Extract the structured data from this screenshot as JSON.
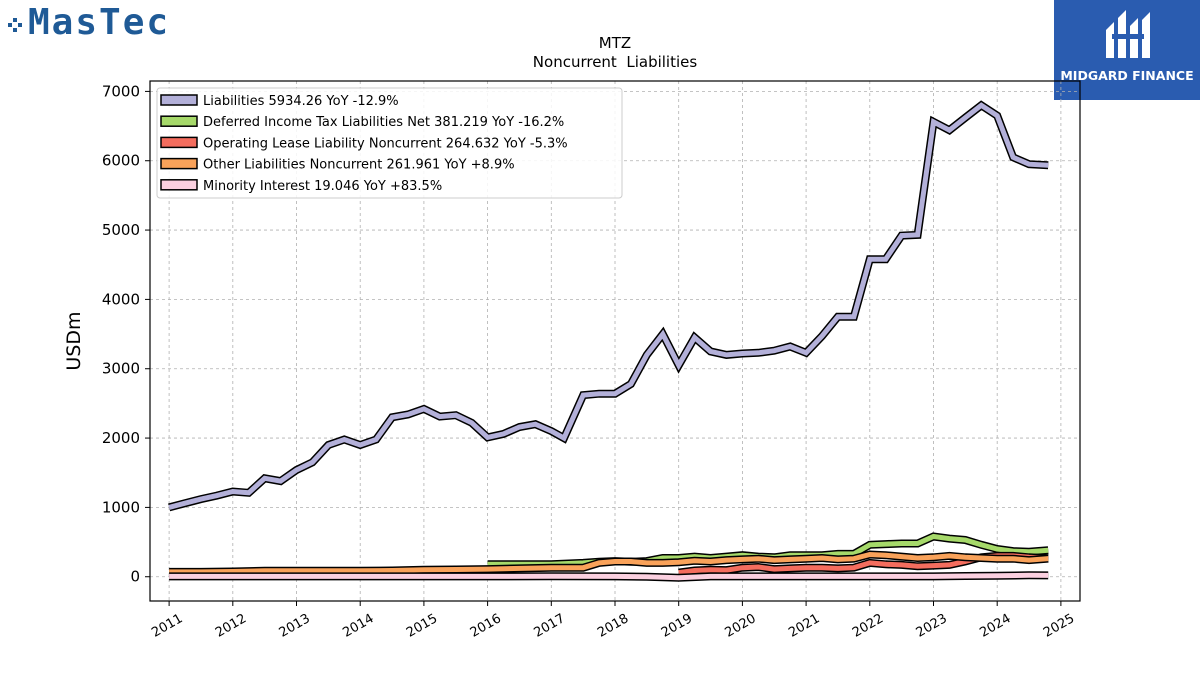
{
  "logos": {
    "left_text": "MasTec",
    "right_text": "MIDGARD FINANCE"
  },
  "chart_data": {
    "type": "line",
    "title": "MTZ",
    "subtitle": "Noncurrent  Liabilities",
    "ylabel": "USDm",
    "xlabel": "",
    "xlim": [
      2010.7,
      2025.3
    ],
    "ylim": [
      -350,
      7150
    ],
    "x_ticks": [
      2011,
      2012,
      2013,
      2014,
      2015,
      2016,
      2017,
      2018,
      2019,
      2020,
      2021,
      2022,
      2023,
      2024,
      2025
    ],
    "y_ticks": [
      0,
      1000,
      2000,
      3000,
      4000,
      5000,
      6000,
      7000
    ],
    "grid": true,
    "legend_position": "top-left",
    "series": [
      {
        "name": "Liabilities",
        "legend": "Liabilities  5934.26 YoY -12.9%",
        "color": "#b3b0d9",
        "points": [
          [
            2011.0,
            1000
          ],
          [
            2011.25,
            1060
          ],
          [
            2011.5,
            1120
          ],
          [
            2011.75,
            1170
          ],
          [
            2012.0,
            1230
          ],
          [
            2012.25,
            1210
          ],
          [
            2012.5,
            1420
          ],
          [
            2012.75,
            1380
          ],
          [
            2013.0,
            1540
          ],
          [
            2013.25,
            1650
          ],
          [
            2013.5,
            1900
          ],
          [
            2013.75,
            1980
          ],
          [
            2014.0,
            1900
          ],
          [
            2014.25,
            1980
          ],
          [
            2014.5,
            2300
          ],
          [
            2014.75,
            2340
          ],
          [
            2015.0,
            2420
          ],
          [
            2015.25,
            2310
          ],
          [
            2015.5,
            2330
          ],
          [
            2015.75,
            2220
          ],
          [
            2016.0,
            2010
          ],
          [
            2016.25,
            2060
          ],
          [
            2016.5,
            2160
          ],
          [
            2016.75,
            2200
          ],
          [
            2017.0,
            2100
          ],
          [
            2017.2,
            2000
          ],
          [
            2017.5,
            2620
          ],
          [
            2017.75,
            2640
          ],
          [
            2018.0,
            2640
          ],
          [
            2018.25,
            2780
          ],
          [
            2018.5,
            3200
          ],
          [
            2018.75,
            3500
          ],
          [
            2019.0,
            3050
          ],
          [
            2019.25,
            3450
          ],
          [
            2019.5,
            3250
          ],
          [
            2019.75,
            3200
          ],
          [
            2020.0,
            3220
          ],
          [
            2020.25,
            3230
          ],
          [
            2020.5,
            3260
          ],
          [
            2020.75,
            3320
          ],
          [
            2021.0,
            3230
          ],
          [
            2021.25,
            3470
          ],
          [
            2021.5,
            3750
          ],
          [
            2021.75,
            3750
          ],
          [
            2022.0,
            4580
          ],
          [
            2022.25,
            4580
          ],
          [
            2022.5,
            4920
          ],
          [
            2022.75,
            4930
          ],
          [
            2023.0,
            6560
          ],
          [
            2023.25,
            6440
          ],
          [
            2023.5,
            6620
          ],
          [
            2023.75,
            6800
          ],
          [
            2024.0,
            6650
          ],
          [
            2024.25,
            6050
          ],
          [
            2024.5,
            5950
          ],
          [
            2024.8,
            5934
          ]
        ]
      },
      {
        "name": "Deferred Income Tax Liabilities Net",
        "legend": "Deferred Income Tax Liabilities Net  381.219 YoY -16.2%",
        "color": "#a6d96a",
        "points": [
          [
            2016.0,
            180
          ],
          [
            2016.5,
            180
          ],
          [
            2017.0,
            180
          ],
          [
            2017.5,
            200
          ],
          [
            2017.75,
            215
          ],
          [
            2018.0,
            225
          ],
          [
            2018.25,
            215
          ],
          [
            2018.5,
            225
          ],
          [
            2018.75,
            270
          ],
          [
            2019.0,
            270
          ],
          [
            2019.25,
            290
          ],
          [
            2019.5,
            270
          ],
          [
            2019.75,
            290
          ],
          [
            2020.0,
            310
          ],
          [
            2020.25,
            290
          ],
          [
            2020.5,
            280
          ],
          [
            2020.75,
            310
          ],
          [
            2021.0,
            310
          ],
          [
            2021.25,
            310
          ],
          [
            2021.5,
            330
          ],
          [
            2021.75,
            330
          ],
          [
            2022.0,
            460
          ],
          [
            2022.25,
            470
          ],
          [
            2022.5,
            480
          ],
          [
            2022.75,
            480
          ],
          [
            2023.0,
            580
          ],
          [
            2023.25,
            550
          ],
          [
            2023.5,
            530
          ],
          [
            2023.75,
            460
          ],
          [
            2024.0,
            400
          ],
          [
            2024.25,
            370
          ],
          [
            2024.5,
            360
          ],
          [
            2024.8,
            381
          ]
        ]
      },
      {
        "name": "Operating Lease Liability Noncurrent",
        "legend": "Operating Lease Liability Noncurrent  264.632 YoY -5.3%",
        "color": "#f46d5e",
        "points": [
          [
            2019.0,
            60
          ],
          [
            2019.25,
            90
          ],
          [
            2019.5,
            100
          ],
          [
            2019.75,
            95
          ],
          [
            2020.0,
            130
          ],
          [
            2020.25,
            140
          ],
          [
            2020.5,
            110
          ],
          [
            2020.75,
            120
          ],
          [
            2021.0,
            130
          ],
          [
            2021.25,
            130
          ],
          [
            2021.5,
            120
          ],
          [
            2021.75,
            130
          ],
          [
            2022.0,
            200
          ],
          [
            2022.25,
            180
          ],
          [
            2022.5,
            170
          ],
          [
            2022.75,
            150
          ],
          [
            2023.0,
            160
          ],
          [
            2023.25,
            170
          ],
          [
            2023.5,
            220
          ],
          [
            2023.75,
            280
          ],
          [
            2024.0,
            300
          ],
          [
            2024.25,
            300
          ],
          [
            2024.5,
            280
          ],
          [
            2024.8,
            265
          ]
        ]
      },
      {
        "name": "Other Liabilities Noncurrent",
        "legend": "Other Liabilities Noncurrent  261.961 YoY +8.9%",
        "color": "#f9a25a",
        "points": [
          [
            2011.0,
            70
          ],
          [
            2011.5,
            70
          ],
          [
            2012.0,
            75
          ],
          [
            2012.5,
            85
          ],
          [
            2013.0,
            85
          ],
          [
            2013.5,
            85
          ],
          [
            2014.0,
            85
          ],
          [
            2014.5,
            90
          ],
          [
            2015.0,
            100
          ],
          [
            2015.5,
            105
          ],
          [
            2016.0,
            110
          ],
          [
            2016.5,
            120
          ],
          [
            2017.0,
            130
          ],
          [
            2017.5,
            130
          ],
          [
            2017.75,
            200
          ],
          [
            2018.0,
            220
          ],
          [
            2018.25,
            220
          ],
          [
            2018.5,
            200
          ],
          [
            2018.75,
            200
          ],
          [
            2019.0,
            210
          ],
          [
            2019.25,
            230
          ],
          [
            2019.5,
            220
          ],
          [
            2019.75,
            240
          ],
          [
            2020.0,
            250
          ],
          [
            2020.25,
            260
          ],
          [
            2020.5,
            240
          ],
          [
            2020.75,
            250
          ],
          [
            2021.0,
            260
          ],
          [
            2021.25,
            270
          ],
          [
            2021.5,
            250
          ],
          [
            2021.75,
            260
          ],
          [
            2022.0,
            320
          ],
          [
            2022.25,
            310
          ],
          [
            2022.5,
            290
          ],
          [
            2022.75,
            270
          ],
          [
            2023.0,
            280
          ],
          [
            2023.25,
            300
          ],
          [
            2023.5,
            280
          ],
          [
            2023.75,
            270
          ],
          [
            2024.0,
            260
          ],
          [
            2024.25,
            260
          ],
          [
            2024.5,
            240
          ],
          [
            2024.8,
            262
          ]
        ]
      },
      {
        "name": "Minority Interest",
        "legend": "Minority Interest  19.046 YoY +83.5%",
        "color": "#fbd0e0",
        "points": [
          [
            2011.0,
            5
          ],
          [
            2012.0,
            5
          ],
          [
            2013.0,
            5
          ],
          [
            2014.0,
            5
          ],
          [
            2015.0,
            5
          ],
          [
            2016.0,
            5
          ],
          [
            2017.0,
            8
          ],
          [
            2018.0,
            5
          ],
          [
            2018.5,
            0
          ],
          [
            2019.0,
            -15
          ],
          [
            2019.5,
            5
          ],
          [
            2020.0,
            5
          ],
          [
            2021.0,
            5
          ],
          [
            2022.0,
            5
          ],
          [
            2022.5,
            5
          ],
          [
            2023.0,
            5
          ],
          [
            2023.5,
            10
          ],
          [
            2024.0,
            15
          ],
          [
            2024.5,
            20
          ],
          [
            2024.8,
            19
          ]
        ]
      }
    ]
  }
}
